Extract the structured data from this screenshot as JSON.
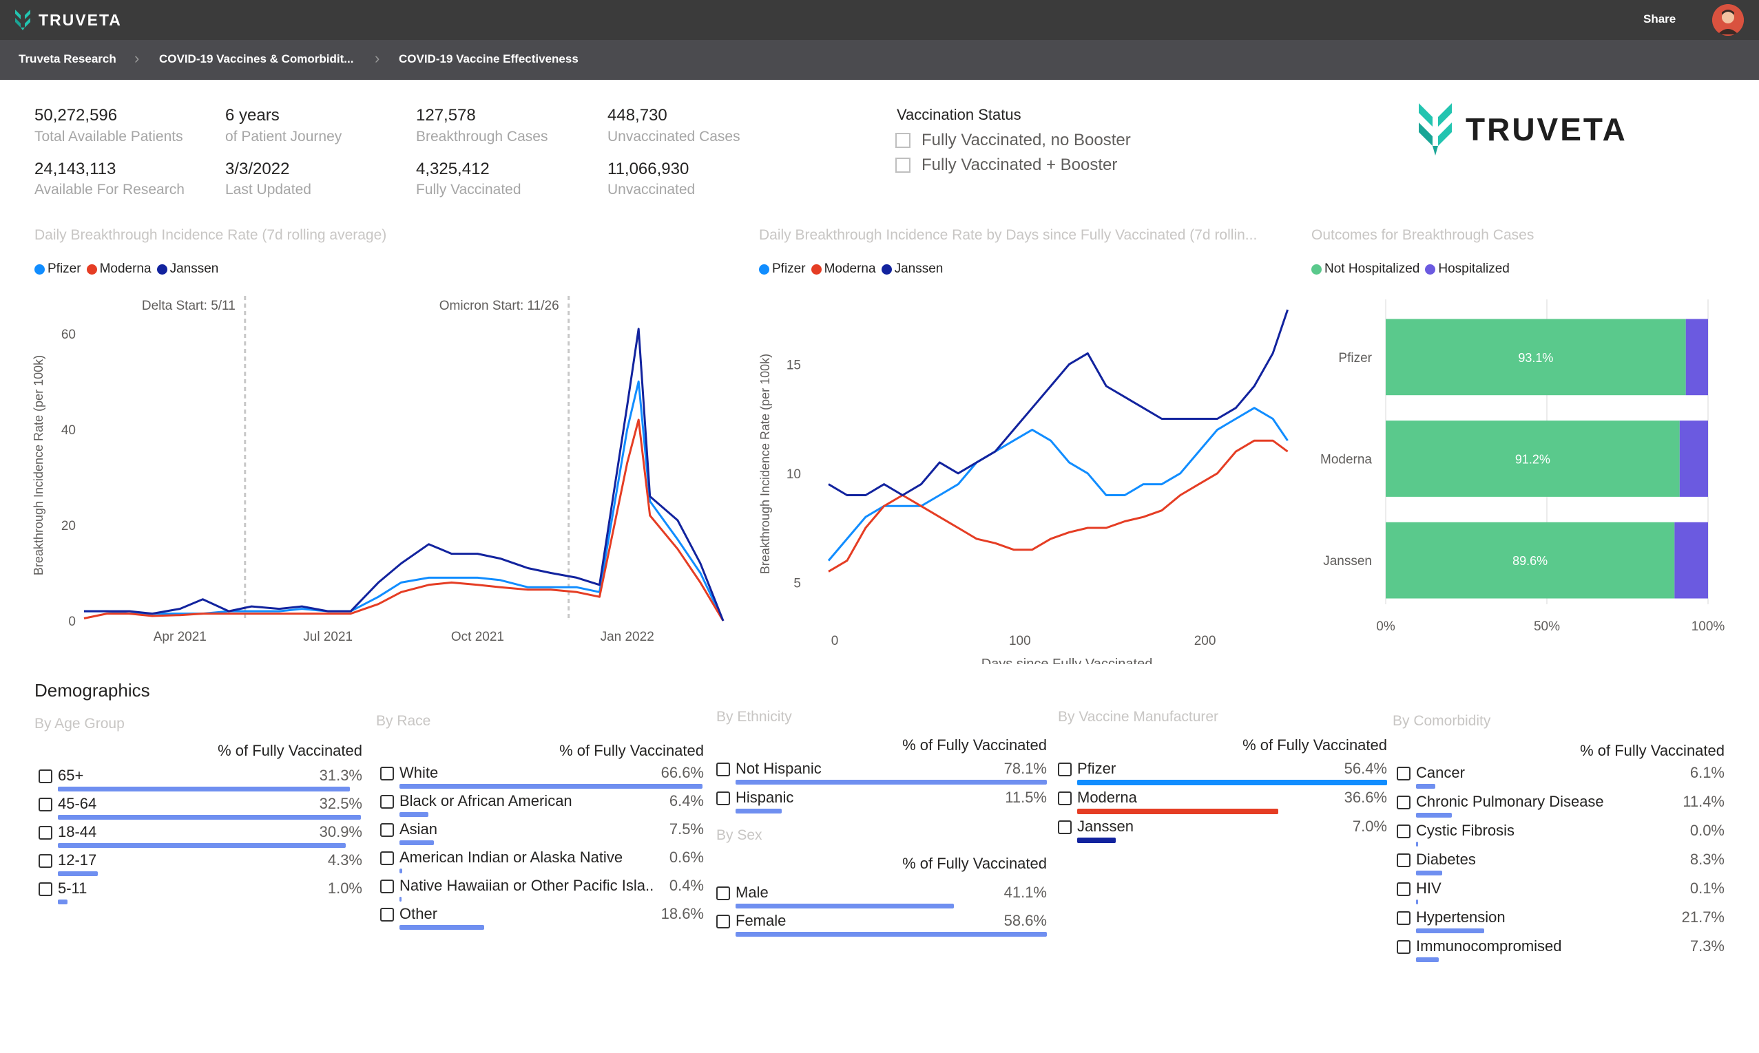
{
  "app": {
    "brand": "TRUVETA",
    "share_label": "Share"
  },
  "breadcrumb": [
    "Truveta Research",
    "COVID-19 Vaccines & Comorbidit...",
    "COVID-19 Vaccine Effectiveness"
  ],
  "kpis": [
    {
      "value": "50,272,596",
      "label": "Total Available Patients"
    },
    {
      "value": "6 years",
      "label": "of Patient Journey"
    },
    {
      "value": "127,578",
      "label": "Breakthrough Cases"
    },
    {
      "value": "448,730",
      "label": "Unvaccinated Cases"
    },
    {
      "value": "24,143,113",
      "label": "Available For Research"
    },
    {
      "value": "3/3/2022",
      "label": "Last Updated"
    },
    {
      "value": "4,325,412",
      "label": "Fully Vaccinated"
    },
    {
      "value": "11,066,930",
      "label": "Unvaccinated"
    }
  ],
  "vaccination_status": {
    "title": "Vaccination Status",
    "options": [
      "Fully Vaccinated, no Booster",
      "Fully Vaccinated + Booster"
    ]
  },
  "colors": {
    "pfizer": "#118dff",
    "moderna": "#e53d24",
    "janssen": "#12239e",
    "not_hospitalized": "#5ac98c",
    "hospitalized": "#6b5ae0",
    "bar_default": "#6f8ff0"
  },
  "chart_data": [
    {
      "type": "line",
      "title": "Daily Breakthrough Incidence Rate (7d rolling average)",
      "ylabel": "Breakthrough Incidence Rate (per 100k)",
      "xlabel": "",
      "x_ticks": [
        "Apr 2021",
        "Jul 2021",
        "Oct 2021",
        "Jan 2022"
      ],
      "y_ticks": [
        0,
        20,
        40,
        60
      ],
      "ylim": [
        0,
        65
      ],
      "annotations": [
        "Delta Start: 5/11",
        "Omicron Start: 11/26"
      ],
      "x": [
        "2021-02-01",
        "2021-02-15",
        "2021-03-01",
        "2021-03-15",
        "2021-04-01",
        "2021-04-15",
        "2021-05-01",
        "2021-05-15",
        "2021-06-01",
        "2021-06-15",
        "2021-07-01",
        "2021-07-15",
        "2021-08-01",
        "2021-08-15",
        "2021-09-01",
        "2021-09-15",
        "2021-10-01",
        "2021-10-15",
        "2021-11-01",
        "2021-11-15",
        "2021-12-01",
        "2021-12-15",
        "2022-01-01",
        "2022-01-08",
        "2022-01-15",
        "2022-02-01",
        "2022-02-15",
        "2022-03-01"
      ],
      "series": [
        {
          "name": "Pfizer",
          "values": [
            2,
            2,
            1.5,
            1.5,
            1.5,
            1.5,
            2,
            2,
            2,
            2.5,
            2,
            2,
            5,
            8,
            9,
            9,
            9,
            8.5,
            7,
            7,
            7,
            6,
            40,
            50,
            25,
            17,
            10,
            0
          ]
        },
        {
          "name": "Moderna",
          "values": [
            0.5,
            1.5,
            1.5,
            1,
            1.2,
            1.5,
            1.5,
            1.5,
            1.5,
            1.5,
            1.5,
            1.5,
            3.5,
            6,
            7.5,
            8,
            7.5,
            7,
            6.5,
            6.5,
            6,
            5,
            33,
            42,
            22,
            15,
            8,
            0
          ]
        },
        {
          "name": "Janssen",
          "values": [
            2,
            2,
            2,
            1.5,
            2.5,
            4.5,
            2,
            3,
            2.5,
            3,
            2,
            2,
            8,
            12,
            16,
            14,
            14,
            13,
            11,
            10,
            9,
            7.5,
            45,
            61,
            26,
            21,
            12,
            0
          ]
        }
      ]
    },
    {
      "type": "line",
      "title": "Daily Breakthrough Incidence Rate by Days since Fully Vaccinated (7d rollin...",
      "ylabel": "Breakthrough Incidence Rate (per 100k)",
      "xlabel": "Days since Fully Vaccinated",
      "x_ticks": [
        0,
        100,
        200
      ],
      "y_ticks": [
        5,
        10,
        15
      ],
      "xlim": [
        0,
        250
      ],
      "ylim": [
        4,
        17.5
      ],
      "x": [
        0,
        10,
        20,
        30,
        40,
        50,
        60,
        70,
        80,
        90,
        100,
        110,
        120,
        130,
        140,
        150,
        160,
        170,
        180,
        190,
        200,
        210,
        220,
        230,
        240,
        248
      ],
      "series": [
        {
          "name": "Pfizer",
          "values": [
            6,
            7,
            8,
            8.5,
            8.5,
            8.5,
            9,
            9.5,
            10.5,
            11,
            11.5,
            12,
            11.5,
            10.5,
            10,
            9,
            9,
            9.5,
            9.5,
            10,
            11,
            12,
            12.5,
            13,
            12.5,
            11.5
          ]
        },
        {
          "name": "Moderna",
          "values": [
            5.5,
            6,
            7.5,
            8.5,
            9,
            8.5,
            8,
            7.5,
            7,
            6.8,
            6.5,
            6.5,
            7,
            7.3,
            7.5,
            7.5,
            7.8,
            8,
            8.3,
            9,
            9.5,
            10,
            11,
            11.5,
            11.5,
            11
          ]
        },
        {
          "name": "Janssen",
          "values": [
            9.5,
            9,
            9,
            9.5,
            9,
            9.5,
            10.5,
            10,
            10.5,
            11,
            12,
            13,
            14,
            15,
            15.5,
            14,
            13.5,
            13,
            12.5,
            12.5,
            12.5,
            12.5,
            13,
            14,
            15.5,
            17.5
          ]
        }
      ]
    },
    {
      "type": "bar",
      "orientation": "horizontal",
      "stacked": true,
      "title": "Outcomes for Breakthrough Cases",
      "categories": [
        "Pfizer",
        "Moderna",
        "Janssen"
      ],
      "x_ticks": [
        "0%",
        "50%",
        "100%"
      ],
      "series": [
        {
          "name": "Not Hospitalized",
          "values": [
            93.1,
            91.2,
            89.6
          ],
          "labels": [
            "93.1%",
            "91.2%",
            "89.6%"
          ]
        },
        {
          "name": "Hospitalized",
          "values": [
            6.9,
            8.8,
            10.4
          ]
        }
      ]
    }
  ],
  "demographics": {
    "title": "Demographics",
    "panels": [
      {
        "title": "By Age Group",
        "header": "% of Fully Vaccinated",
        "rows": [
          {
            "label": "65+",
            "value": "31.3%",
            "pct": 31.3
          },
          {
            "label": "45-64",
            "value": "32.5%",
            "pct": 32.5
          },
          {
            "label": "18-44",
            "value": "30.9%",
            "pct": 30.9
          },
          {
            "label": "12-17",
            "value": "4.3%",
            "pct": 4.3
          },
          {
            "label": "5-11",
            "value": "1.0%",
            "pct": 1.0
          }
        ]
      },
      {
        "title": "By Race",
        "header": "% of Fully Vaccinated",
        "rows": [
          {
            "label": "White",
            "value": "66.6%",
            "pct": 66.6
          },
          {
            "label": "Black or African American",
            "value": "6.4%",
            "pct": 6.4
          },
          {
            "label": "Asian",
            "value": "7.5%",
            "pct": 7.5
          },
          {
            "label": "American Indian or Alaska Native",
            "value": "0.6%",
            "pct": 0.6
          },
          {
            "label": "Native Hawaiian or Other Pacific Isla...",
            "value": "0.4%",
            "pct": 0.4
          },
          {
            "label": "Other",
            "value": "18.6%",
            "pct": 18.6
          }
        ]
      },
      {
        "title": "By Ethnicity",
        "header": "% of Fully Vaccinated",
        "rows": [
          {
            "label": "Not Hispanic",
            "value": "78.1%",
            "pct": 78.1
          },
          {
            "label": "Hispanic",
            "value": "11.5%",
            "pct": 11.5
          }
        ]
      },
      {
        "title": "By Sex",
        "header": "% of Fully Vaccinated",
        "rows": [
          {
            "label": "Male",
            "value": "41.1%",
            "pct": 41.1
          },
          {
            "label": "Female",
            "value": "58.6%",
            "pct": 58.6
          }
        ]
      },
      {
        "title": "By Vaccine Manufacturer",
        "header": "% of Fully Vaccinated",
        "rows": [
          {
            "label": "Pfizer",
            "value": "56.4%",
            "pct": 56.4,
            "color": "#118dff"
          },
          {
            "label": "Moderna",
            "value": "36.6%",
            "pct": 36.6,
            "color": "#e53d24"
          },
          {
            "label": "Janssen",
            "value": "7.0%",
            "pct": 7.0,
            "color": "#12239e"
          }
        ]
      },
      {
        "title": "By Comorbidity",
        "header": "% of Fully Vaccinated",
        "rows": [
          {
            "label": "Cancer",
            "value": "6.1%",
            "pct": 6.1
          },
          {
            "label": "Chronic Pulmonary Disease",
            "value": "11.4%",
            "pct": 11.4
          },
          {
            "label": "Cystic Fibrosis",
            "value": "0.0%",
            "pct": 0.0
          },
          {
            "label": "Diabetes",
            "value": "8.3%",
            "pct": 8.3
          },
          {
            "label": "HIV",
            "value": "0.1%",
            "pct": 0.1
          },
          {
            "label": "Hypertension",
            "value": "21.7%",
            "pct": 21.7
          },
          {
            "label": "Immunocompromised",
            "value": "7.3%",
            "pct": 7.3
          }
        ]
      }
    ]
  }
}
